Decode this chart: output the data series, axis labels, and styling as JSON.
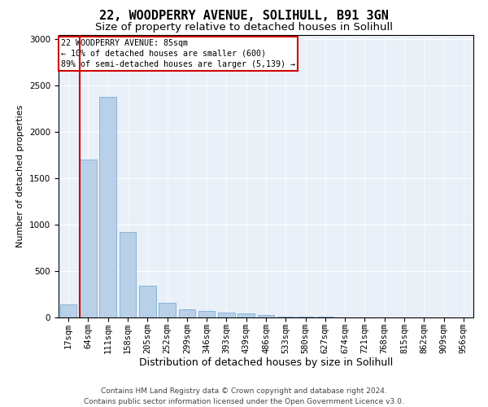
{
  "title1": "22, WOODPERRY AVENUE, SOLIHULL, B91 3GN",
  "title2": "Size of property relative to detached houses in Solihull",
  "xlabel": "Distribution of detached houses by size in Solihull",
  "ylabel": "Number of detached properties",
  "categories": [
    "17sqm",
    "64sqm",
    "111sqm",
    "158sqm",
    "205sqm",
    "252sqm",
    "299sqm",
    "346sqm",
    "393sqm",
    "439sqm",
    "486sqm",
    "533sqm",
    "580sqm",
    "627sqm",
    "674sqm",
    "721sqm",
    "768sqm",
    "815sqm",
    "862sqm",
    "909sqm",
    "956sqm"
  ],
  "values": [
    140,
    1700,
    2380,
    920,
    340,
    160,
    90,
    70,
    55,
    45,
    25,
    5,
    5,
    5,
    2,
    2,
    0,
    0,
    0,
    0,
    0
  ],
  "bar_color": "#b8d0e8",
  "bar_edge_color": "#7aadd4",
  "vline_color": "#cc0000",
  "vline_pos": 0.575,
  "annotation_box_text": "22 WOODPERRY AVENUE: 85sqm\n← 10% of detached houses are smaller (600)\n89% of semi-detached houses are larger (5,139) →",
  "annotation_box_color": "#cc0000",
  "annotation_box_bg": "#ffffff",
  "ylim": [
    0,
    3050
  ],
  "yticks": [
    0,
    500,
    1000,
    1500,
    2000,
    2500,
    3000
  ],
  "footer": "Contains HM Land Registry data © Crown copyright and database right 2024.\nContains public sector information licensed under the Open Government Licence v3.0.",
  "bg_color": "#eaf0f8",
  "title1_fontsize": 11,
  "title2_fontsize": 9.5,
  "xlabel_fontsize": 9,
  "ylabel_fontsize": 8,
  "tick_fontsize": 7.5,
  "footer_fontsize": 6.5
}
